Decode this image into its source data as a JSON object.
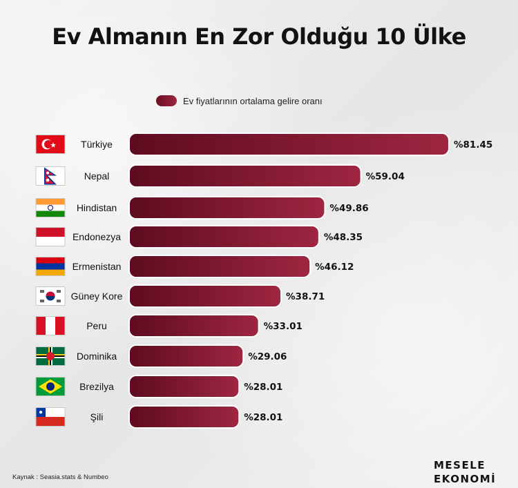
{
  "title": "Ev Almanın En Zor Olduğu 10 Ülke",
  "source": "Kaynak : Seasia.stats & Numbeo",
  "brand": {
    "line1": "MESELE",
    "line2": "EKONOMİ"
  },
  "colors": {
    "bar_dark": "#5e0b1f",
    "bar_light": "#9e2641",
    "bar_stroke": "#ffffff"
  },
  "chart_data": {
    "type": "bar",
    "orientation": "horizontal",
    "title": "Ev Almanın En Zor Olduğu 10 Ülke",
    "legend": "Ev fiyatlarının ortalama gelire oranı",
    "value_prefix": "%",
    "categories": [
      "Türkiye",
      "Nepal",
      "Hindistan",
      "Endonezya",
      "Ermenistan",
      "Güney Kore",
      "Peru",
      "Dominika",
      "Brezilya",
      "Şili"
    ],
    "value_labels": [
      "%81.45",
      "%59.04",
      "%49.86",
      "%48.35",
      "%46.12",
      "%38.71",
      "%33.01",
      "%29.06",
      "%28.01",
      "%28.01"
    ],
    "values": [
      81.45,
      59.04,
      49.86,
      48.35,
      46.12,
      38.71,
      33.01,
      29.06,
      28.01,
      28.01
    ],
    "flags": [
      "turkey-flag-icon",
      "nepal-flag-icon",
      "india-flag-icon",
      "indonesia-flag-icon",
      "armenia-flag-icon",
      "south-korea-flag-icon",
      "peru-flag-icon",
      "dominica-flag-icon",
      "brazil-flag-icon",
      "chile-flag-icon"
    ]
  }
}
